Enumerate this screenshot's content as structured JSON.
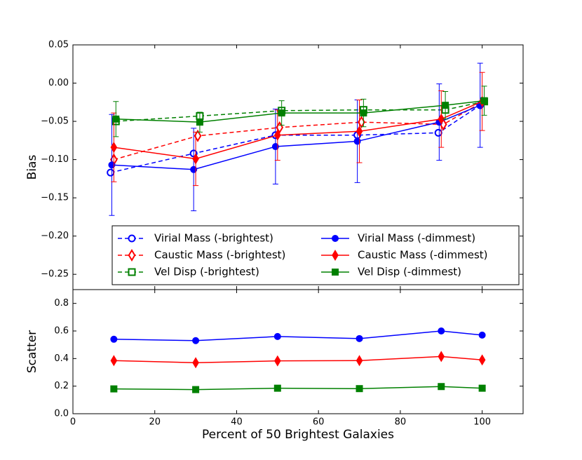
{
  "chart_data": [
    {
      "type": "line",
      "ylabel": "Bias",
      "xlim": [
        0,
        110
      ],
      "ylim": [
        -0.27,
        0.05
      ],
      "yticks": [
        0.05,
        {
          "value": 0,
          "label": "0.00"
        },
        {
          "value": -0.05,
          "label": "−0.05"
        },
        {
          "value": -0.1,
          "label": "−0.10"
        },
        {
          "value": -0.15,
          "label": "−0.15"
        },
        {
          "value": -0.2,
          "label": "−0.20"
        },
        {
          "value": -0.25,
          "label": "−0.25"
        }
      ],
      "legend": "lower right",
      "legend_columns": 2,
      "series": [
        {
          "name": "Virial Mass (-brightest)",
          "color": "#0000ff",
          "linestyle": "dashed",
          "marker": "circle",
          "filled": false,
          "x": [
            9.2,
            29.5,
            49.5,
            69.5,
            89.3,
            99.5
          ],
          "values": [
            -0.117,
            -0.092,
            -0.068,
            -0.068,
            -0.065,
            -0.029
          ]
        },
        {
          "name": "Caustic Mass (-brightest)",
          "color": "#ff0000",
          "linestyle": "dashed",
          "marker": "diamond",
          "filled": false,
          "x": [
            10,
            30.5,
            50.5,
            70.5,
            90.5,
            100
          ],
          "values": [
            -0.1,
            -0.069,
            -0.058,
            -0.051,
            -0.054,
            -0.025
          ]
        },
        {
          "name": "Vel Disp (-brightest)",
          "color": "#008000",
          "linestyle": "dashed",
          "marker": "square",
          "filled": false,
          "x": [
            10.5,
            31,
            51,
            71,
            91,
            100.5
          ],
          "values": [
            -0.05,
            -0.043,
            -0.036,
            -0.035,
            -0.035,
            -0.024
          ]
        },
        {
          "name": "Virial Mass (-dimmest)",
          "color": "#0000ff",
          "linestyle": "solid",
          "marker": "circle",
          "filled": true,
          "x": [
            9.5,
            29.5,
            49.5,
            69.5,
            89.5,
            99.5
          ],
          "values": [
            -0.107,
            -0.113,
            -0.083,
            -0.076,
            -0.051,
            -0.029
          ],
          "errors": [
            0.066,
            0.054,
            0.049,
            0.054,
            0.05,
            0.055
          ]
        },
        {
          "name": "Caustic Mass (-dimmest)",
          "color": "#ff0000",
          "linestyle": "solid",
          "marker": "diamond",
          "filled": true,
          "x": [
            10,
            30,
            50,
            70,
            90,
            100
          ],
          "values": [
            -0.084,
            -0.099,
            -0.068,
            -0.063,
            -0.047,
            -0.024
          ],
          "errors": [
            0.045,
            0.035,
            0.033,
            0.041,
            0.037,
            0.038
          ]
        },
        {
          "name": "Vel Disp (-dimmest)",
          "color": "#008000",
          "linestyle": "solid",
          "marker": "square",
          "filled": true,
          "x": [
            10.5,
            31,
            51,
            71,
            91,
            100.5
          ],
          "values": [
            -0.047,
            -0.051,
            -0.039,
            -0.039,
            -0.029,
            -0.023
          ],
          "errors": [
            0.023,
            0.013,
            0.016,
            0.018,
            0.018,
            0.019
          ]
        }
      ]
    },
    {
      "type": "line",
      "ylabel": "Scatter",
      "xlabel": "Percent of 50 Brightest Galaxies",
      "xlim": [
        0,
        110
      ],
      "ylim": [
        0,
        0.9
      ],
      "xticks": [
        0,
        20,
        40,
        60,
        80,
        100
      ],
      "yticks": [
        {
          "value": 0,
          "label": "0.0"
        },
        0.2,
        0.4,
        0.6,
        0.8
      ],
      "series": [
        {
          "color": "#0000ff",
          "linestyle": "solid",
          "marker": "circle",
          "filled": true,
          "x": [
            10,
            30,
            50,
            70,
            90,
            100
          ],
          "values": [
            0.54,
            0.53,
            0.56,
            0.545,
            0.6,
            0.57
          ]
        },
        {
          "color": "#ff0000",
          "linestyle": "solid",
          "marker": "diamond",
          "filled": true,
          "x": [
            10,
            30,
            50,
            70,
            90,
            100
          ],
          "values": [
            0.385,
            0.37,
            0.383,
            0.385,
            0.415,
            0.39
          ]
        },
        {
          "color": "#008000",
          "linestyle": "solid",
          "marker": "square",
          "filled": true,
          "x": [
            10,
            30,
            50,
            70,
            90,
            100
          ],
          "values": [
            0.18,
            0.175,
            0.185,
            0.182,
            0.197,
            0.185
          ]
        }
      ]
    }
  ]
}
